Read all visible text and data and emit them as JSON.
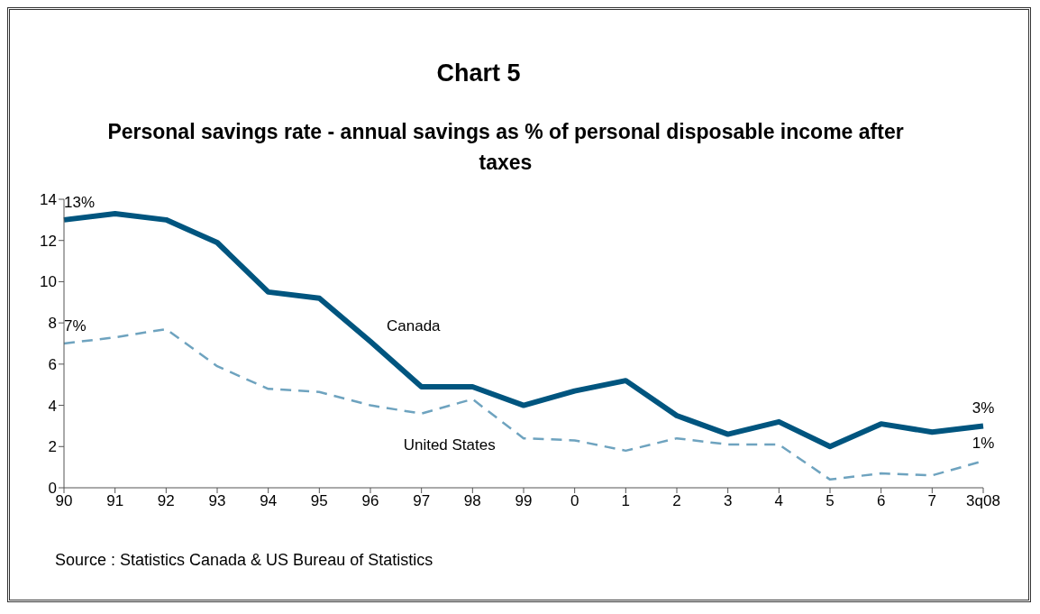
{
  "chart_data": {
    "type": "line",
    "title": "Chart 5",
    "subtitle": "Personal savings rate - annual savings as % of personal disposable income after taxes",
    "categories": [
      "90",
      "91",
      "92",
      "93",
      "94",
      "95",
      "96",
      "97",
      "98",
      "99",
      "0",
      "1",
      "2",
      "3",
      "4",
      "5",
      "6",
      "7",
      "3q08"
    ],
    "series": [
      {
        "name": "Canada",
        "color": "#00557f",
        "line_style": "solid",
        "values": [
          13.0,
          13.3,
          13.0,
          11.9,
          9.5,
          9.2,
          7.1,
          4.9,
          4.9,
          4.0,
          4.7,
          5.2,
          3.5,
          2.6,
          3.2,
          2.0,
          3.1,
          2.7,
          3.0
        ],
        "value_labels": [
          "13%",
          null,
          null,
          null,
          null,
          null,
          null,
          null,
          null,
          null,
          null,
          null,
          null,
          null,
          null,
          null,
          null,
          null,
          "3%"
        ]
      },
      {
        "name": "United States",
        "color": "#6ea3bf",
        "line_style": "dashed",
        "values": [
          7.0,
          7.3,
          7.7,
          5.9,
          4.8,
          4.65,
          4.0,
          3.6,
          4.3,
          2.4,
          2.3,
          1.8,
          2.4,
          2.1,
          2.1,
          0.4,
          0.7,
          0.6,
          1.3
        ],
        "value_labels": [
          "7%",
          null,
          null,
          null,
          null,
          null,
          null,
          null,
          null,
          null,
          null,
          null,
          null,
          null,
          null,
          null,
          null,
          null,
          "1%"
        ]
      }
    ],
    "ylim": [
      0,
      14
    ],
    "yticks": [
      0,
      2,
      4,
      6,
      8,
      10,
      12,
      14
    ],
    "grid": false,
    "legend": false,
    "marker": "none",
    "annotations": [
      "Source : Statistics Canada & US Bureau of Statistics"
    ]
  }
}
